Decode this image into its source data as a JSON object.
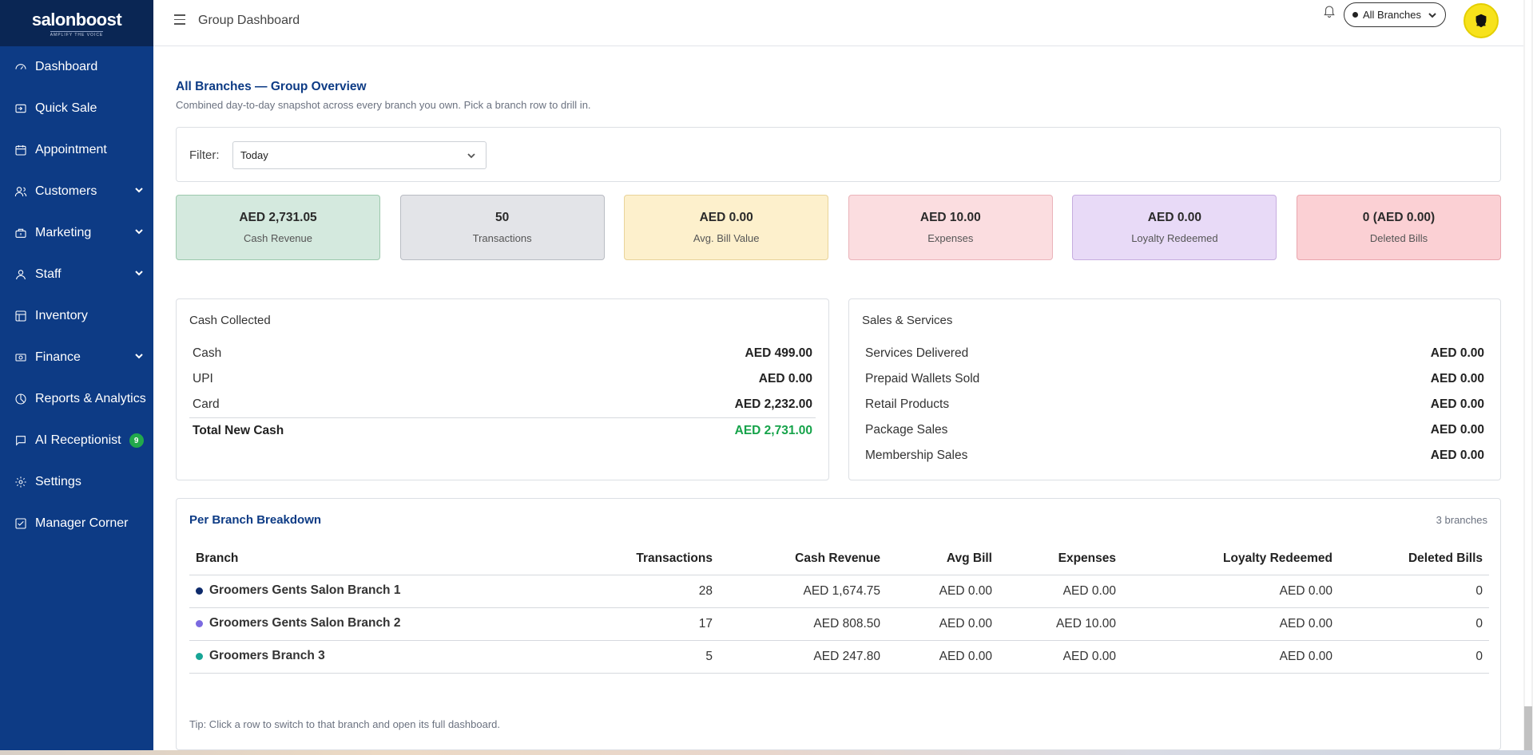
{
  "brand": {
    "name": "salonboost",
    "tagline": "AMPLIFY THE VOICE"
  },
  "sidebar": {
    "items": [
      {
        "label": "Dashboard",
        "icon": "dashboard-icon",
        "chevron": false
      },
      {
        "label": "Quick Sale",
        "icon": "quick-sale-icon",
        "chevron": false
      },
      {
        "label": "Appointment",
        "icon": "calendar-icon",
        "chevron": false
      },
      {
        "label": "Customers",
        "icon": "users-icon",
        "chevron": true
      },
      {
        "label": "Marketing",
        "icon": "marketing-icon",
        "chevron": true
      },
      {
        "label": "Staff",
        "icon": "user-icon",
        "chevron": true
      },
      {
        "label": "Inventory",
        "icon": "inventory-icon",
        "chevron": false
      },
      {
        "label": "Finance",
        "icon": "finance-icon",
        "chevron": true
      },
      {
        "label": "Reports & Analytics",
        "icon": "reports-icon",
        "chevron": false
      },
      {
        "label": "AI Receptionist",
        "icon": "chat-icon",
        "chevron": false,
        "badge": "9"
      },
      {
        "label": "Settings",
        "icon": "gear-icon",
        "chevron": false
      },
      {
        "label": "Manager Corner",
        "icon": "checklist-icon",
        "chevron": false
      }
    ]
  },
  "header": {
    "title": "Group Dashboard",
    "branch_selector": "All Branches"
  },
  "overview": {
    "title": "All Branches — Group Overview",
    "subtitle": "Combined day-to-day snapshot across every branch you own. Pick a branch row to drill in."
  },
  "filter": {
    "label": "Filter:",
    "value": "Today"
  },
  "kpis": [
    {
      "value": "AED 2,731.05",
      "label": "Cash Revenue",
      "bg": "#d4e9de",
      "border": "#9cc9ad"
    },
    {
      "value": "50",
      "label": "Transactions",
      "bg": "#e3e4e8",
      "border": "#b9bcc3"
    },
    {
      "value": "AED 0.00",
      "label": "Avg. Bill Value",
      "bg": "#fdf0cc",
      "border": "#e8d39a"
    },
    {
      "value": "AED 10.00",
      "label": "Expenses",
      "bg": "#fbdde0",
      "border": "#eab3ba"
    },
    {
      "value": "AED 0.00",
      "label": "Loyalty Redeemed",
      "bg": "#e8daf7",
      "border": "#c6addf"
    },
    {
      "value": "0 (AED 0.00)",
      "label": "Deleted Bills",
      "bg": "#fbd0d4",
      "border": "#e9a5ad"
    }
  ],
  "cash_collected": {
    "title": "Cash Collected",
    "rows": [
      {
        "label": "Cash",
        "value": "AED 499.00"
      },
      {
        "label": "UPI",
        "value": "AED 0.00"
      },
      {
        "label": "Card",
        "value": "AED 2,232.00"
      }
    ],
    "total": {
      "label": "Total New Cash",
      "value": "AED 2,731.00"
    }
  },
  "sales_services": {
    "title": "Sales & Services",
    "rows": [
      {
        "label": "Services Delivered",
        "value": "AED 0.00"
      },
      {
        "label": "Prepaid Wallets Sold",
        "value": "AED 0.00"
      },
      {
        "label": "Retail Products",
        "value": "AED 0.00"
      },
      {
        "label": "Package Sales",
        "value": "AED 0.00"
      },
      {
        "label": "Membership Sales",
        "value": "AED 0.00"
      }
    ]
  },
  "per_branch": {
    "title": "Per Branch Breakdown",
    "count": "3 branches",
    "columns": [
      "Branch",
      "Transactions",
      "Cash Revenue",
      "Avg Bill",
      "Expenses",
      "Loyalty Redeemed",
      "Deleted Bills"
    ],
    "rows": [
      {
        "branch": "Groomers Gents Salon Branch 1",
        "dot": "#0d2a6b",
        "transactions": "28",
        "cash_revenue": "AED 1,674.75",
        "avg_bill": "AED 0.00",
        "expenses": "AED 0.00",
        "loyalty": "AED 0.00",
        "deleted": "0"
      },
      {
        "branch": "Groomers Gents Salon Branch 2",
        "dot": "#7b6ae0",
        "transactions": "17",
        "cash_revenue": "AED 808.50",
        "avg_bill": "AED 0.00",
        "expenses": "AED 10.00",
        "loyalty": "AED 0.00",
        "deleted": "0"
      },
      {
        "branch": "Groomers Branch 3",
        "dot": "#17a596",
        "transactions": "5",
        "cash_revenue": "AED 247.80",
        "avg_bill": "AED 0.00",
        "expenses": "AED 0.00",
        "loyalty": "AED 0.00",
        "deleted": "0"
      }
    ],
    "tip": "Tip: Click a row to switch to that branch and open its full dashboard."
  }
}
